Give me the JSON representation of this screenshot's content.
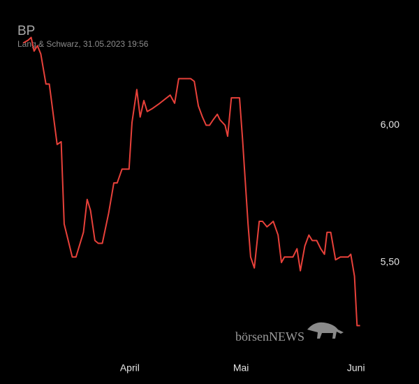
{
  "chart_data": {
    "type": "line",
    "title": "BP",
    "subtitle": "Lang & Schwarz, 31.05.2023 19:56",
    "watermark": "börsenNEWS",
    "color": "#e8413a",
    "x": [
      62.3,
      63.6,
      64.4,
      65.2,
      66.1,
      67.0,
      68.4,
      69.3,
      71.4,
      72.5,
      73.3,
      74.4,
      75.5,
      76.5,
      78.5,
      79.5,
      80.4,
      81.6,
      82.5,
      83.6,
      85.3,
      86.7,
      87.6,
      88.9,
      90.2,
      90.8,
      91.6,
      92.9,
      93.8,
      94.8,
      95.7,
      97.0,
      99.1,
      101.9,
      103.1,
      104.2,
      106.3,
      107.4,
      108.4,
      109.5,
      110.6,
      111.6,
      112.5,
      113.5,
      114.6,
      115.3,
      116.7,
      117.4,
      118.4,
      119.3,
      120.6,
      121.4,
      122.9,
      123.6,
      124.6,
      125.9,
      126.8,
      128.0,
      128.9,
      129.7,
      131.0,
      131.9,
      132.7,
      133.8,
      135.0,
      136.1,
      137.0,
      138.2,
      139.3,
      140.2,
      141.4,
      142.5,
      143.5,
      144.2,
      145.2,
      146.5,
      147.8,
      148.9,
      149.9,
      150.6,
      151.6,
      152.3,
      153.1
    ],
    "values": [
      6.3,
      6.31,
      6.32,
      6.27,
      6.29,
      6.26,
      6.15,
      6.15,
      5.93,
      5.94,
      5.64,
      5.58,
      5.52,
      5.52,
      5.61,
      5.73,
      5.69,
      5.58,
      5.57,
      5.57,
      5.68,
      5.79,
      5.79,
      5.84,
      5.84,
      5.84,
      6.01,
      6.13,
      6.03,
      6.09,
      6.05,
      6.06,
      6.08,
      6.11,
      6.08,
      6.17,
      6.17,
      6.17,
      6.16,
      6.07,
      6.03,
      6.0,
      6.0,
      6.02,
      6.04,
      6.02,
      6.0,
      5.96,
      6.1,
      6.1,
      6.1,
      5.95,
      5.64,
      5.52,
      5.48,
      5.65,
      5.65,
      5.63,
      5.64,
      5.65,
      5.6,
      5.5,
      5.52,
      5.52,
      5.52,
      5.55,
      5.47,
      5.56,
      5.6,
      5.58,
      5.58,
      5.55,
      5.53,
      5.61,
      5.61,
      5.51,
      5.52,
      5.52,
      5.52,
      5.53,
      5.45,
      5.27,
      5.27
    ],
    "xlim": [
      56,
      169
    ],
    "xticks": [
      {
        "value": 91,
        "label": "April"
      },
      {
        "value": 121,
        "label": "Mai"
      },
      {
        "value": 152,
        "label": "Juni"
      }
    ],
    "ylim": [
      5.21,
      6.38
    ],
    "yticks": [
      {
        "value": 5.5,
        "label": "5,50"
      },
      {
        "value": 6,
        "label": "6,00"
      }
    ],
    "grid": false
  }
}
